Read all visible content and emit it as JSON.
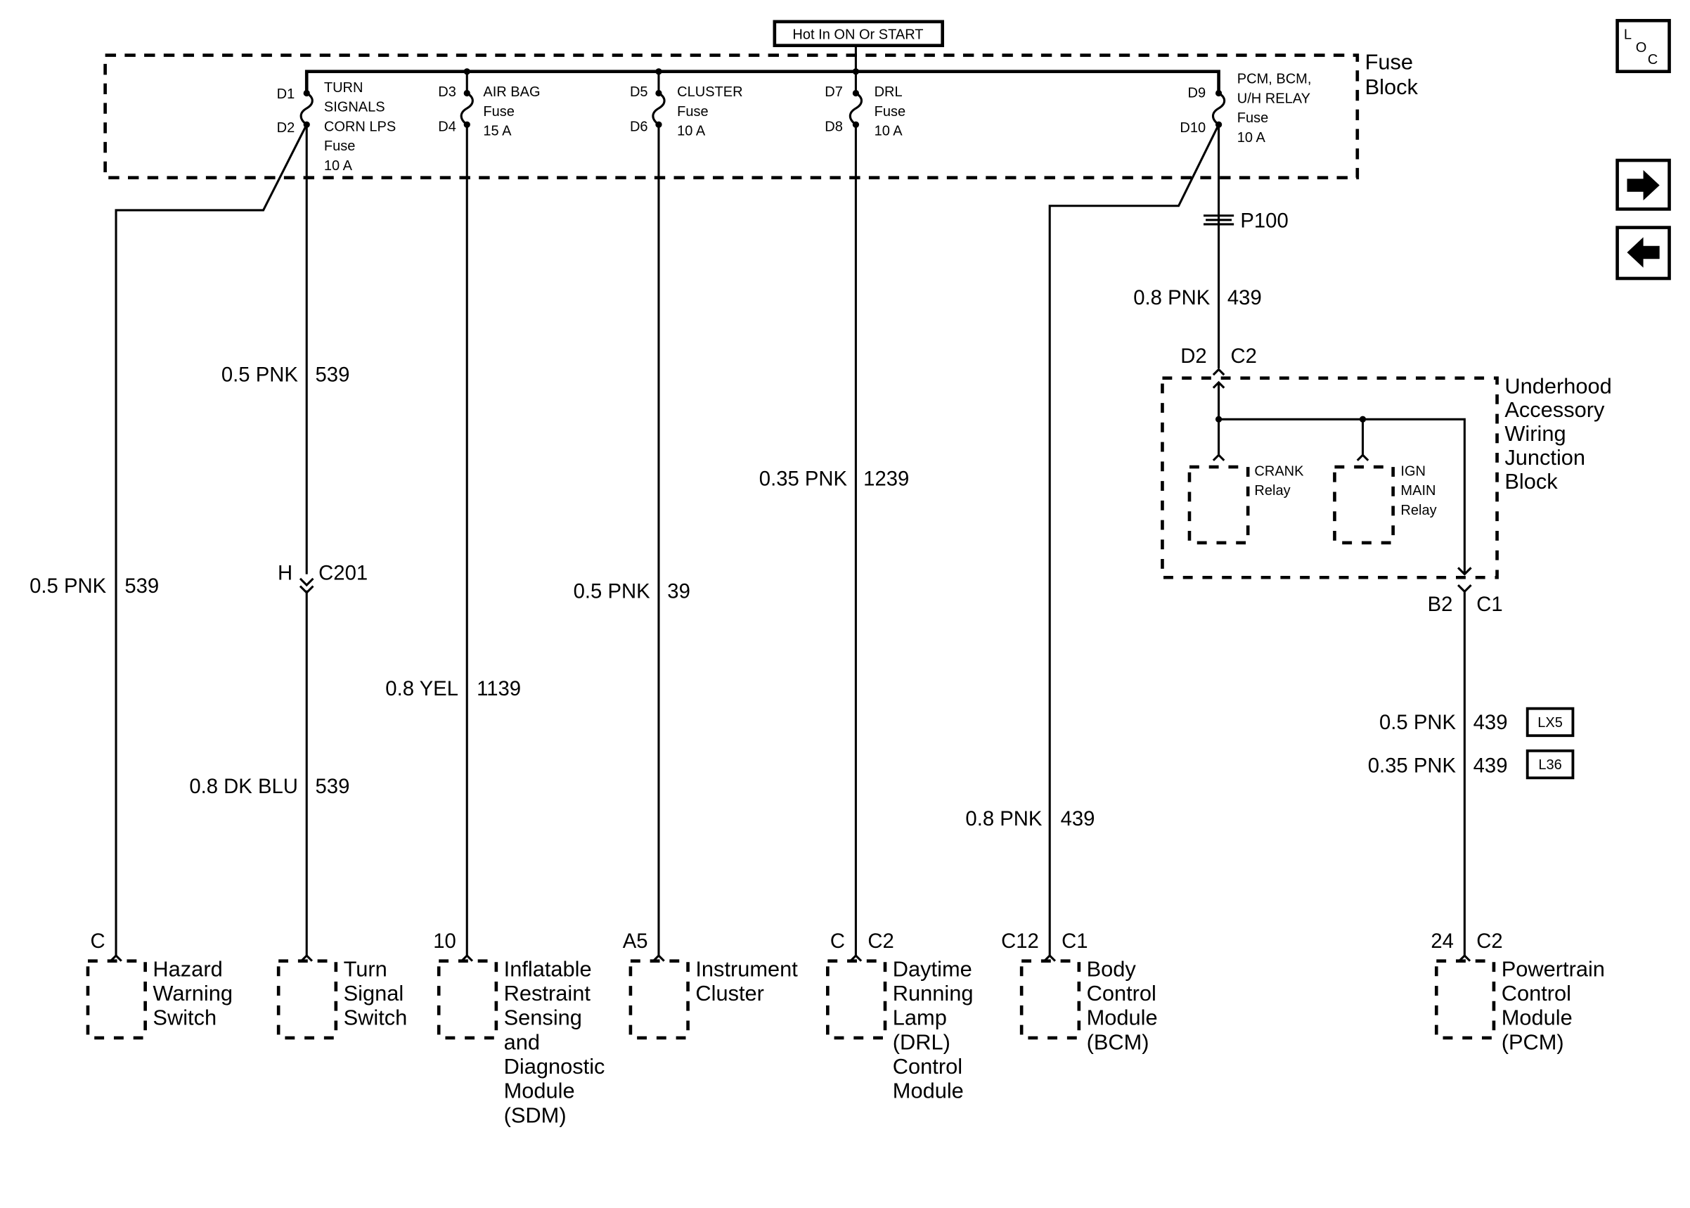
{
  "header": {
    "hot_label": "Hot In ON Or START"
  },
  "nav": {
    "loc_icon": "location-icon",
    "loc_letters": [
      "L",
      "O",
      "C"
    ],
    "next_icon": "arrow-right-icon",
    "prev_icon": "arrow-left-icon"
  },
  "fuse_block": {
    "label": [
      "Fuse",
      "Block"
    ],
    "fuses": [
      {
        "in": "D1",
        "out": "D2",
        "label": [
          "TURN",
          "SIGNALS",
          "CORN LPS",
          "Fuse",
          "10 A"
        ]
      },
      {
        "in": "D3",
        "out": "D4",
        "label": [
          "AIR BAG",
          "Fuse",
          "15 A"
        ]
      },
      {
        "in": "D5",
        "out": "D6",
        "label": [
          "CLUSTER",
          "Fuse",
          "10 A"
        ]
      },
      {
        "in": "D7",
        "out": "D8",
        "label": [
          "DRL",
          "Fuse",
          "10 A"
        ]
      },
      {
        "in": "D9",
        "out": "D10",
        "label": [
          "PCM, BCM,",
          "U/H RELAY",
          "Fuse",
          "10 A"
        ]
      }
    ]
  },
  "wires": {
    "hazard": {
      "gauge": "0.5 PNK",
      "circuit": "539"
    },
    "turn_upper": {
      "gauge": "0.5 PNK",
      "circuit": "539"
    },
    "turn_lower": {
      "gauge": "0.8 DK BLU",
      "circuit": "539"
    },
    "airbag": {
      "gauge": "0.8 YEL",
      "circuit": "1139"
    },
    "cluster": {
      "gauge": "0.5 PNK",
      "circuit": "39"
    },
    "drl": {
      "gauge": "0.35 PNK",
      "circuit": "1239"
    },
    "bcm": {
      "gauge": "0.8 PNK",
      "circuit": "439"
    },
    "pcm_upper": {
      "gauge": "0.8 PNK",
      "circuit": "439"
    },
    "pcm_lx5": {
      "gauge": "0.5 PNK",
      "circuit": "439",
      "option": "LX5"
    },
    "pcm_l36": {
      "gauge": "0.35 PNK",
      "circuit": "439",
      "option": "L36"
    }
  },
  "connectors": {
    "c201": {
      "pin": "H",
      "name": "C201"
    },
    "p100": {
      "name": "P100"
    },
    "uawjb_in": {
      "pin": "D2",
      "name": "C2"
    },
    "uawjb_out": {
      "pin": "B2",
      "name": "C1"
    }
  },
  "junction_block": {
    "label": [
      "Underhood",
      "Accessory",
      "Wiring",
      "Junction",
      "Block"
    ],
    "crank": [
      "CRANK",
      "Relay"
    ],
    "ign": [
      "IGN",
      "MAIN",
      "Relay"
    ]
  },
  "components": [
    {
      "pin": "C",
      "conn": "",
      "name": [
        "Hazard",
        "Warning",
        "Switch"
      ]
    },
    {
      "pin": "",
      "conn": "",
      "name": [
        "Turn",
        "Signal",
        "Switch"
      ]
    },
    {
      "pin": "10",
      "conn": "",
      "name": [
        "Inflatable",
        "Restraint",
        "Sensing",
        "and",
        "Diagnostic",
        "Module",
        "(SDM)"
      ]
    },
    {
      "pin": "A5",
      "conn": "",
      "name": [
        "Instrument",
        "Cluster"
      ]
    },
    {
      "pin": "C",
      "conn": "C2",
      "name": [
        "Daytime",
        "Running",
        "Lamp",
        "(DRL)",
        "Control",
        "Module"
      ]
    },
    {
      "pin": "C12",
      "conn": "C1",
      "name": [
        "Body",
        "Control",
        "Module",
        "(BCM)"
      ]
    },
    {
      "pin": "24",
      "conn": "C2",
      "name": [
        "Powertrain",
        "Control",
        "Module",
        "(PCM)"
      ]
    }
  ]
}
